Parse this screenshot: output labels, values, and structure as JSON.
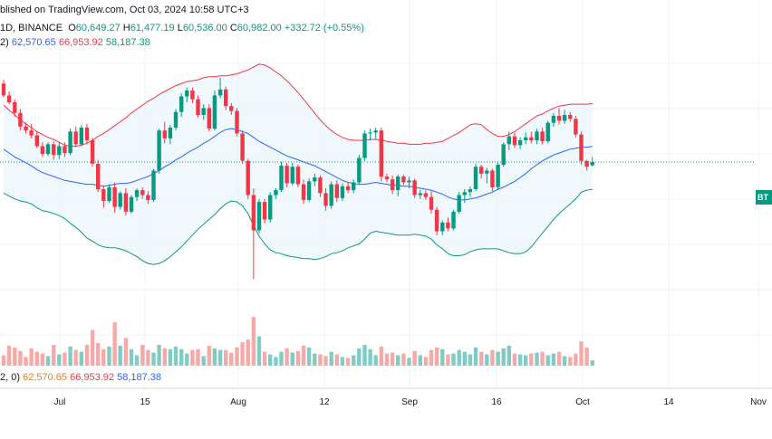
{
  "header": {
    "line1_prefix": "blished on TradingView.com, Oct 03, 2024 10:58 UTC+3",
    "interval_exchange": "1D, BINANCE",
    "ohlc": {
      "o_label": "O",
      "o": "60,649.27",
      "h_label": "H",
      "h": "61,477.19",
      "l_label": "L",
      "l": "60,536.00",
      "c_label": "C",
      "c": "60,982.00",
      "change": "+332.72 (+0.55%)"
    },
    "bb_prefix": "2)",
    "bb_basis": "62,570.65",
    "bb_upper": "66,953.92",
    "bb_lower": "58,187.38"
  },
  "volume_legend": {
    "prefix": "2, 0)",
    "v1": "62,570.65",
    "v2": "66,953.92",
    "v3": "58,187.38"
  },
  "price_tag": "BT",
  "colors": {
    "up": "#089981",
    "down": "#f23645",
    "basis": "#2962ff",
    "upper": "#f23645",
    "lower": "#089981",
    "band_fill": "#e3f2fd"
  },
  "chart_data": {
    "type": "candlestick",
    "symbol": "BTC",
    "interval": "1D",
    "x_ticks": [
      "Jul",
      "15",
      "Aug",
      "12",
      "Sep",
      "16",
      "Oct",
      "14",
      "Nov"
    ],
    "x_tick_days": [
      8,
      22,
      39,
      57,
      92,
      106,
      123,
      141,
      161
    ],
    "ylim": [
      47000,
      72000
    ],
    "current_price": 60982,
    "candles": [
      [
        69000,
        69400,
        67600,
        67800
      ],
      [
        67800,
        68200,
        66900,
        67100
      ],
      [
        67100,
        67400,
        65600,
        66000
      ],
      [
        66000,
        66400,
        64200,
        64600
      ],
      [
        64600,
        65000,
        63900,
        64200
      ],
      [
        64200,
        64900,
        63400,
        63700
      ],
      [
        63700,
        64100,
        62400,
        62600
      ],
      [
        62600,
        63000,
        61500,
        61800
      ],
      [
        61800,
        63000,
        61600,
        62800
      ],
      [
        62800,
        63100,
        61200,
        61700
      ],
      [
        61700,
        63000,
        61300,
        62600
      ],
      [
        62600,
        63000,
        61500,
        61900
      ],
      [
        61900,
        64400,
        61700,
        64100
      ],
      [
        64100,
        64600,
        62500,
        62800
      ],
      [
        62800,
        64800,
        62600,
        64500
      ],
      [
        64500,
        64900,
        62800,
        63200
      ],
      [
        63200,
        63500,
        60500,
        60800
      ],
      [
        60800,
        61200,
        57900,
        58200
      ],
      [
        58200,
        58600,
        56300,
        57000
      ],
      [
        57000,
        58700,
        56800,
        58400
      ],
      [
        58400,
        58900,
        55800,
        56400
      ],
      [
        56400,
        58000,
        56100,
        57800
      ],
      [
        57800,
        58300,
        55500,
        55900
      ],
      [
        55900,
        57600,
        55700,
        57400
      ],
      [
        57400,
        58300,
        57000,
        58100
      ],
      [
        58100,
        58400,
        57200,
        57600
      ],
      [
        57600,
        58000,
        56700,
        57100
      ],
      [
        57100,
        60300,
        56900,
        60100
      ],
      [
        60100,
        64400,
        59800,
        64200
      ],
      [
        64200,
        65100,
        62900,
        63400
      ],
      [
        63400,
        64800,
        62800,
        64500
      ],
      [
        64500,
        66400,
        64200,
        66100
      ],
      [
        66100,
        68000,
        65600,
        67700
      ],
      [
        67700,
        68600,
        67100,
        68300
      ],
      [
        68300,
        68600,
        67000,
        67400
      ],
      [
        67400,
        67800,
        65500,
        65800
      ],
      [
        65800,
        66900,
        65300,
        66500
      ],
      [
        66500,
        66900,
        64100,
        64400
      ],
      [
        64400,
        68300,
        64200,
        67800
      ],
      [
        67800,
        69600,
        67500,
        68400
      ],
      [
        68400,
        68700,
        66300,
        66700
      ],
      [
        66700,
        67000,
        65800,
        66200
      ],
      [
        66200,
        66500,
        63600,
        63900
      ],
      [
        63900,
        64200,
        60800,
        61100
      ],
      [
        61100,
        61300,
        57200,
        57600
      ],
      [
        57600,
        58300,
        49000,
        54000
      ],
      [
        54000,
        57200,
        53700,
        56900
      ],
      [
        56900,
        57200,
        54700,
        55100
      ],
      [
        55100,
        57900,
        54800,
        57600
      ],
      [
        57600,
        58300,
        57200,
        58100
      ],
      [
        58100,
        61000,
        57900,
        60600
      ],
      [
        60600,
        60900,
        58400,
        58800
      ],
      [
        58800,
        60900,
        58600,
        60500
      ],
      [
        60500,
        60700,
        58400,
        58700
      ],
      [
        58700,
        59200,
        56700,
        57100
      ],
      [
        57100,
        59300,
        56900,
        59000
      ],
      [
        59000,
        59800,
        58500,
        59400
      ],
      [
        59400,
        59600,
        57400,
        57800
      ],
      [
        57800,
        58300,
        56000,
        56500
      ],
      [
        56500,
        59000,
        56200,
        58700
      ],
      [
        58700,
        59100,
        56900,
        57300
      ],
      [
        57300,
        58800,
        57000,
        58500
      ],
      [
        58500,
        58900,
        57800,
        58100
      ],
      [
        58100,
        59200,
        57800,
        58900
      ],
      [
        58900,
        61700,
        58700,
        61400
      ],
      [
        61400,
        64200,
        61100,
        63900
      ],
      [
        63900,
        64400,
        63200,
        64000
      ],
      [
        64000,
        64500,
        63300,
        64200
      ],
      [
        64200,
        64500,
        59000,
        59500
      ],
      [
        59500,
        59800,
        58900,
        59200
      ],
      [
        59200,
        59600,
        57700,
        58100
      ],
      [
        58100,
        59700,
        57500,
        59500
      ],
      [
        59500,
        59700,
        58600,
        58900
      ],
      [
        58900,
        59500,
        58300,
        59100
      ],
      [
        59100,
        59300,
        57300,
        57600
      ],
      [
        57600,
        58100,
        57200,
        57800
      ],
      [
        57800,
        58100,
        57100,
        57400
      ],
      [
        57400,
        58000,
        55700,
        56100
      ],
      [
        56100,
        56400,
        53500,
        53900
      ],
      [
        53900,
        55000,
        53500,
        54800
      ],
      [
        54800,
        55300,
        53900,
        54200
      ],
      [
        54200,
        56100,
        54000,
        55900
      ],
      [
        55900,
        57900,
        55700,
        57600
      ],
      [
        57600,
        58200,
        56800,
        57900
      ],
      [
        57900,
        58500,
        57400,
        58200
      ],
      [
        58200,
        60800,
        58000,
        60500
      ],
      [
        60500,
        60700,
        59300,
        59800
      ],
      [
        59800,
        60400,
        58800,
        60100
      ],
      [
        60100,
        60300,
        58000,
        58400
      ],
      [
        58400,
        60900,
        58100,
        60700
      ],
      [
        60700,
        63000,
        60500,
        62800
      ],
      [
        62800,
        64100,
        62200,
        63600
      ],
      [
        63600,
        64000,
        62400,
        62700
      ],
      [
        62700,
        63500,
        62300,
        63200
      ],
      [
        63200,
        64000,
        62800,
        63500
      ],
      [
        63500,
        64100,
        62900,
        63200
      ],
      [
        63200,
        64400,
        62800,
        64100
      ],
      [
        64100,
        64500,
        62800,
        63100
      ],
      [
        63100,
        65200,
        62900,
        65000
      ],
      [
        65000,
        66000,
        64600,
        65700
      ],
      [
        65700,
        66500,
        64800,
        65200
      ],
      [
        65200,
        66300,
        64900,
        65800
      ],
      [
        65800,
        66100,
        65100,
        65400
      ],
      [
        65400,
        65700,
        63500,
        63800
      ],
      [
        63800,
        64100,
        60700,
        61100
      ],
      [
        61100,
        61200,
        60100,
        60500
      ],
      [
        60649,
        61477,
        60536,
        60982
      ]
    ],
    "volume": [
      [
        1.2,
        0
      ],
      [
        2.3,
        0
      ],
      [
        2.1,
        0
      ],
      [
        1.7,
        0
      ],
      [
        1.0,
        0
      ],
      [
        2.0,
        0
      ],
      [
        1.6,
        0
      ],
      [
        1.4,
        0
      ],
      [
        1.1,
        1
      ],
      [
        2.4,
        0
      ],
      [
        1.3,
        1
      ],
      [
        1.5,
        0
      ],
      [
        2.2,
        1
      ],
      [
        1.8,
        0
      ],
      [
        1.6,
        1
      ],
      [
        2.4,
        0
      ],
      [
        4.1,
        0
      ],
      [
        2.6,
        0
      ],
      [
        1.9,
        0
      ],
      [
        2.2,
        1
      ],
      [
        5.0,
        0
      ],
      [
        2.3,
        1
      ],
      [
        3.2,
        0
      ],
      [
        1.9,
        1
      ],
      [
        1.2,
        1
      ],
      [
        2.4,
        0
      ],
      [
        1.8,
        0
      ],
      [
        1.5,
        1
      ],
      [
        2.4,
        1
      ],
      [
        2.0,
        0
      ],
      [
        1.9,
        1
      ],
      [
        2.2,
        1
      ],
      [
        1.9,
        1
      ],
      [
        1.4,
        1
      ],
      [
        1.8,
        0
      ],
      [
        1.9,
        0
      ],
      [
        1.1,
        1
      ],
      [
        2.3,
        0
      ],
      [
        2.0,
        1
      ],
      [
        1.8,
        1
      ],
      [
        1.8,
        0
      ],
      [
        1.5,
        0
      ],
      [
        2.1,
        0
      ],
      [
        2.7,
        0
      ],
      [
        3.0,
        0
      ],
      [
        5.6,
        0
      ],
      [
        3.4,
        1
      ],
      [
        1.6,
        0
      ],
      [
        1.3,
        1
      ],
      [
        1.0,
        1
      ],
      [
        1.6,
        1
      ],
      [
        2.0,
        0
      ],
      [
        1.5,
        1
      ],
      [
        1.7,
        0
      ],
      [
        2.3,
        0
      ],
      [
        2.1,
        1
      ],
      [
        1.4,
        1
      ],
      [
        1.3,
        0
      ],
      [
        1.1,
        0
      ],
      [
        1.6,
        1
      ],
      [
        1.3,
        0
      ],
      [
        1.0,
        1
      ],
      [
        0.9,
        0
      ],
      [
        1.2,
        1
      ],
      [
        2.0,
        1
      ],
      [
        2.4,
        1
      ],
      [
        1.9,
        1
      ],
      [
        1.2,
        1
      ],
      [
        2.2,
        0
      ],
      [
        1.4,
        0
      ],
      [
        1.5,
        0
      ],
      [
        1.2,
        1
      ],
      [
        1.4,
        0
      ],
      [
        0.9,
        1
      ],
      [
        1.7,
        0
      ],
      [
        1.2,
        1
      ],
      [
        1.0,
        0
      ],
      [
        1.8,
        0
      ],
      [
        2.1,
        0
      ],
      [
        1.9,
        1
      ],
      [
        1.3,
        0
      ],
      [
        1.4,
        1
      ],
      [
        1.8,
        1
      ],
      [
        1.6,
        1
      ],
      [
        1.3,
        1
      ],
      [
        2.1,
        1
      ],
      [
        1.6,
        0
      ],
      [
        1.3,
        1
      ],
      [
        1.8,
        0
      ],
      [
        1.6,
        1
      ],
      [
        2.0,
        1
      ],
      [
        2.3,
        1
      ],
      [
        1.4,
        0
      ],
      [
        1.3,
        1
      ],
      [
        1.2,
        1
      ],
      [
        1.4,
        0
      ],
      [
        1.5,
        1
      ],
      [
        1.6,
        0
      ],
      [
        1.2,
        1
      ],
      [
        1.4,
        1
      ],
      [
        1.6,
        0
      ],
      [
        1.1,
        1
      ],
      [
        1.0,
        0
      ],
      [
        1.4,
        0
      ],
      [
        2.8,
        0
      ],
      [
        2.1,
        0
      ],
      [
        0.6,
        1
      ]
    ],
    "bb_basis": [
      62300,
      61900,
      61500,
      61200,
      60900,
      60600,
      60200,
      59900,
      59700,
      59500,
      59300,
      59100,
      59000,
      58900,
      58800,
      58700,
      58700,
      58600,
      58500,
      58600,
      58700,
      58800,
      58800,
      58900,
      59100,
      59300,
      59500,
      59800,
      60100,
      60500,
      60800,
      61200,
      61500,
      61900,
      62200,
      62500,
      62900,
      63200,
      63600,
      64000,
      64300,
      64400,
      64300,
      64100,
      63900,
      63500,
      63100,
      62800,
      62500,
      62200,
      61900,
      61600,
      61400,
      61200,
      61000,
      60800,
      60600,
      60300,
      60000,
      59700,
      59400,
      59100,
      58900,
      58800,
      58700,
      58700,
      58800,
      58900,
      58800,
      58700,
      58600,
      58600,
      58500,
      58500,
      58400,
      58300,
      58200,
      58100,
      57900,
      57700,
      57400,
      57200,
      57100,
      57100,
      57200,
      57300,
      57500,
      57700,
      57900,
      58200,
      58400,
      58700,
      59000,
      59400,
      59800,
      60300,
      60700,
      61100,
      61400,
      61700,
      61900,
      62100,
      62300,
      62400,
      62500,
      62500,
      62570
    ],
    "bb_upper": [
      66800,
      66300,
      65800,
      65300,
      64900,
      64500,
      64100,
      63800,
      63500,
      63300,
      63000,
      62700,
      62600,
      62600,
      62700,
      62900,
      63200,
      63600,
      63900,
      64300,
      64700,
      65100,
      65500,
      66000,
      66400,
      66800,
      67200,
      67500,
      67900,
      68200,
      68500,
      68800,
      69000,
      69200,
      69300,
      69400,
      69600,
      69700,
      69700,
      69800,
      69800,
      69900,
      70000,
      70200,
      70400,
      70700,
      71000,
      70900,
      70600,
      70200,
      69800,
      69300,
      68700,
      68100,
      67400,
      66700,
      66000,
      65300,
      64700,
      64200,
      63800,
      63500,
      63300,
      63200,
      63200,
      63200,
      63300,
      63300,
      63200,
      63100,
      63000,
      62900,
      62900,
      62800,
      62800,
      62800,
      62900,
      62900,
      63000,
      63100,
      63400,
      63700,
      64000,
      64400,
      64800,
      64900,
      64800,
      64300,
      63900,
      63600,
      63600,
      63800,
      64100,
      64500,
      64900,
      65300,
      65700,
      65900,
      66200,
      66500,
      66700,
      66800,
      66900,
      66900,
      66900,
      66900,
      66954
    ],
    "bb_lower": [
      57800,
      57500,
      57200,
      57000,
      56900,
      56700,
      56300,
      56000,
      55900,
      55700,
      55500,
      55200,
      54700,
      54300,
      53800,
      53200,
      52900,
      52500,
      52300,
      52200,
      52200,
      52100,
      51900,
      51600,
      51300,
      50900,
      50600,
      50500,
      50600,
      50900,
      51300,
      51800,
      52300,
      52900,
      53500,
      54100,
      54600,
      55100,
      55600,
      56200,
      56700,
      57000,
      56900,
      56500,
      55700,
      54500,
      53400,
      52600,
      52000,
      51700,
      51600,
      51400,
      51300,
      51200,
      51100,
      51100,
      51000,
      51100,
      51300,
      51600,
      51700,
      51900,
      52200,
      52400,
      52600,
      53100,
      53700,
      53900,
      53800,
      53700,
      53600,
      53500,
      53500,
      53500,
      53600,
      53500,
      53400,
      53100,
      52500,
      52100,
      51600,
      51400,
      51400,
      51500,
      51800,
      52000,
      52100,
      52100,
      52100,
      52100,
      51900,
      51700,
      51600,
      51600,
      51800,
      52300,
      53000,
      53700,
      54400,
      55100,
      55700,
      56200,
      56700,
      57200,
      57900,
      58100,
      58187
    ]
  }
}
